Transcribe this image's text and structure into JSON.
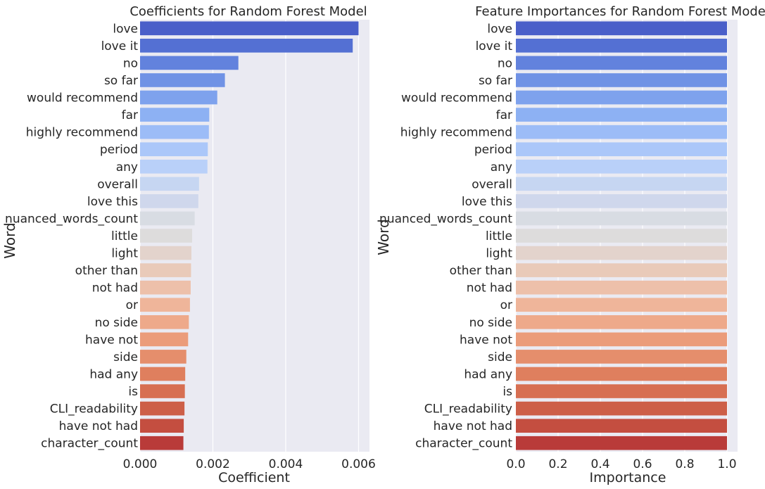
{
  "chart_data": [
    {
      "type": "bar",
      "orientation": "horizontal",
      "title": "Coefficients for Random Forest Model",
      "xlabel": "Coefficient",
      "ylabel": "Word",
      "xlim": [
        0,
        0.0063
      ],
      "xticks": [
        0,
        0.002,
        0.004,
        0.006
      ],
      "xtick_labels": [
        "0.000",
        "0.002",
        "0.004",
        "0.006"
      ],
      "grid": true,
      "categories": [
        "love",
        "love it",
        "no",
        "so far",
        "would recommend",
        "far",
        "highly recommend",
        "period",
        "any",
        "overall",
        "love this",
        "nuanced_words_count",
        "little",
        "light",
        "other than",
        "not had",
        "or",
        "no side",
        "have not",
        "side",
        "had any",
        "is",
        "CLI_readability",
        "have not had",
        "character_count"
      ],
      "values": [
        0.006,
        0.00584,
        0.0027,
        0.00233,
        0.00212,
        0.0019,
        0.00189,
        0.00186,
        0.00185,
        0.00162,
        0.0016,
        0.0015,
        0.00143,
        0.00141,
        0.0014,
        0.00139,
        0.00137,
        0.00134,
        0.00132,
        0.00127,
        0.00124,
        0.00123,
        0.00122,
        0.0012,
        0.00119
      ]
    },
    {
      "type": "bar",
      "orientation": "horizontal",
      "title": "Feature Importances for Random Forest Model",
      "xlabel": "Importance",
      "ylabel": "Word",
      "xlim": [
        0,
        1.05
      ],
      "xticks": [
        0,
        0.2,
        0.4,
        0.6,
        0.8,
        1.0
      ],
      "xtick_labels": [
        "0.0",
        "0.2",
        "0.4",
        "0.6",
        "0.8",
        "1.0"
      ],
      "grid": true,
      "categories": [
        "love",
        "love it",
        "no",
        "so far",
        "would recommend",
        "far",
        "highly recommend",
        "period",
        "any",
        "overall",
        "love this",
        "nuanced_words_count",
        "little",
        "light",
        "other than",
        "not had",
        "or",
        "no side",
        "have not",
        "side",
        "had any",
        "is",
        "CLI_readability",
        "have not had",
        "character_count"
      ],
      "values": [
        1.0,
        1.0,
        1.0,
        1.0,
        1.0,
        1.0,
        1.0,
        1.0,
        1.0,
        1.0,
        1.0,
        1.0,
        1.0,
        1.0,
        1.0,
        1.0,
        1.0,
        1.0,
        1.0,
        1.0,
        1.0,
        1.0,
        1.0,
        1.0,
        1.0
      ]
    }
  ],
  "palette": [
    "#4a5fc9",
    "#5470d3",
    "#6282dd",
    "#7092e5",
    "#7ea2ed",
    "#8db1f3",
    "#9cbcf7",
    "#abc7f9",
    "#b9d0f9",
    "#c6d6f2",
    "#cfd7ec",
    "#d8dce3",
    "#dddcdc",
    "#e3d3cc",
    "#e9cab9",
    "#edc0aa",
    "#efb59a",
    "#eea98a",
    "#eb9c7a",
    "#e58e6c",
    "#df7f5e",
    "#d76f52",
    "#cd5f48",
    "#c44e40",
    "#b93b39"
  ],
  "style": {
    "plot_bg": "#eaeaf2",
    "grid_color": "#ffffff",
    "text_color": "#262626"
  }
}
